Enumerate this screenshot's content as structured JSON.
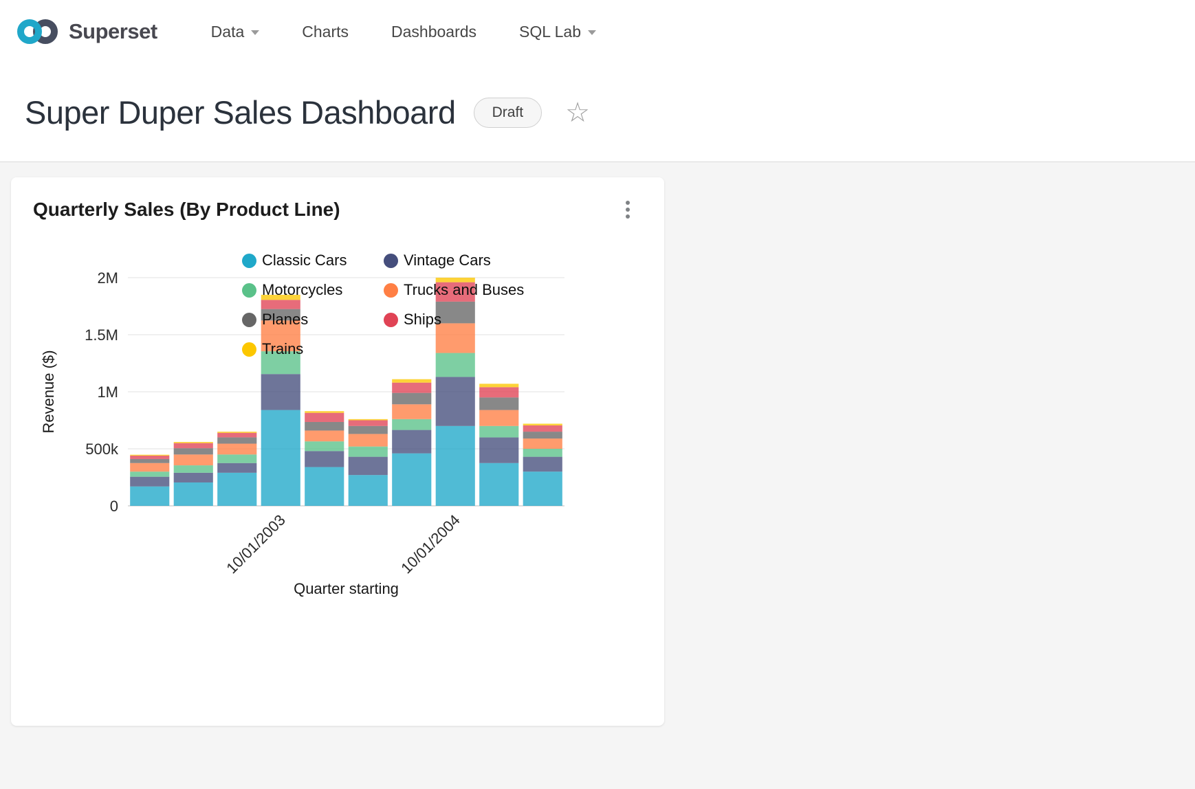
{
  "navbar": {
    "brand": "Superset",
    "items": [
      {
        "label": "Data",
        "has_caret": true
      },
      {
        "label": "Charts",
        "has_caret": false
      },
      {
        "label": "Dashboards",
        "has_caret": false
      },
      {
        "label": "SQL Lab",
        "has_caret": true
      }
    ]
  },
  "header": {
    "title": "Super Duper Sales Dashboard",
    "badge": "Draft"
  },
  "icons": {
    "star": "☆"
  },
  "colors": {
    "brand_teal": "#20A7C9",
    "brand_dark": "#474E60",
    "content_background": "#f5f5f5"
  },
  "card": {
    "title": "Quarterly Sales (By Product Line)"
  },
  "chart_data": {
    "type": "bar",
    "stacked": true,
    "title": "Quarterly Sales (By Product Line)",
    "xlabel": "Quarter starting",
    "ylabel": "Revenue ($)",
    "ylim": [
      0,
      2000000
    ],
    "grid": true,
    "legend_position": "top",
    "x_count": 10,
    "x_tick_labels": [
      {
        "index": 3,
        "label": "10/01/2003"
      },
      {
        "index": 7,
        "label": "10/01/2004"
      }
    ],
    "yticks": [
      {
        "v": 0,
        "label": "0"
      },
      {
        "v": 500000,
        "label": "500k"
      },
      {
        "v": 1000000,
        "label": "1M"
      },
      {
        "v": 1500000,
        "label": "1.5M"
      },
      {
        "v": 2000000,
        "label": "2M"
      }
    ],
    "series": [
      {
        "name": "Classic Cars",
        "color": "#1FA8C9",
        "values": [
          170000,
          205000,
          290000,
          840000,
          340000,
          270000,
          460000,
          700000,
          375000,
          300000
        ]
      },
      {
        "name": "Vintage Cars",
        "color": "#454E7C",
        "values": [
          85000,
          85000,
          85000,
          315000,
          140000,
          160000,
          205000,
          430000,
          225000,
          130000
        ]
      },
      {
        "name": "Motorcycles",
        "color": "#5AC189",
        "values": [
          45000,
          65000,
          75000,
          200000,
          85000,
          90000,
          95000,
          210000,
          100000,
          70000
        ]
      },
      {
        "name": "Trucks and Buses",
        "color": "#FF7F44",
        "values": [
          75000,
          95000,
          95000,
          270000,
          95000,
          110000,
          130000,
          260000,
          140000,
          90000
        ]
      },
      {
        "name": "Planes",
        "color": "#666666",
        "values": [
          35000,
          55000,
          55000,
          100000,
          75000,
          70000,
          100000,
          190000,
          110000,
          60000
        ]
      },
      {
        "name": "Ships",
        "color": "#E04355",
        "values": [
          30000,
          45000,
          40000,
          80000,
          80000,
          50000,
          90000,
          170000,
          90000,
          55000
        ]
      },
      {
        "name": "Trains",
        "color": "#FCC700",
        "values": [
          8000,
          10000,
          10000,
          45000,
          15000,
          10000,
          30000,
          40000,
          30000,
          15000
        ]
      }
    ]
  }
}
